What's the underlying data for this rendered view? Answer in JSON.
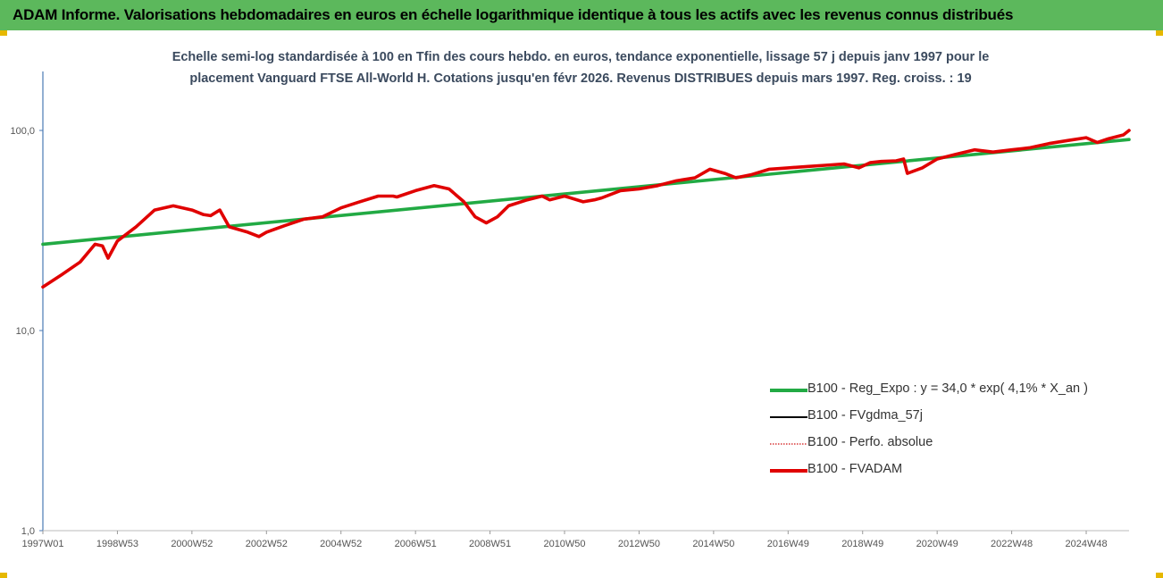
{
  "header": {
    "title": "ADAM Informe. Valorisations hebdomadaires en euros en échelle logarithmique identique à tous les actifs avec les revenus connus distribués"
  },
  "chart_data": {
    "type": "line",
    "subtitle_line1": "Echelle semi-log standardisée à 100 en Tfin des cours hebdo. en euros, tendance exponentielle, lissage 57 j depuis janv 1997 pour le",
    "subtitle_line2": "placement Vanguard FTSE All-World H. Cotations jusqu'en févr 2026. Revenus DISTRIBUES depuis mars 1997. Reg. croiss. : 19",
    "y_scale": "log",
    "ylim": [
      1,
      100
    ],
    "y_ticks": [
      "100,0",
      "10,0",
      "1,0"
    ],
    "x_range": [
      1997.0,
      2026.15
    ],
    "x_ticks": [
      "1997W01",
      "1998W53",
      "2000W52",
      "2002W52",
      "2004W52",
      "2006W51",
      "2008W51",
      "2010W50",
      "2012W50",
      "2014W50",
      "2016W49",
      "2018W49",
      "2020W49",
      "2022W48",
      "2024W48"
    ],
    "legend_position": "bottom-right",
    "series": [
      {
        "name": "B100 - Reg_Expo : y = 34,0 * exp( 4,1% *  X_an )",
        "color": "#22aa44",
        "style": "solid-thick",
        "x": [
          1997.0,
          2026.15
        ],
        "y": [
          27,
          90
        ]
      },
      {
        "name": "B100 - FVgdma_57j",
        "color": "#000000",
        "style": "solid",
        "x": [
          1997.0,
          1997.5,
          1998.0,
          1998.4,
          1998.6,
          1998.75,
          1999.0,
          1999.5,
          2000.0,
          2000.5,
          2001.0,
          2001.3,
          2001.5,
          2001.75,
          2002.0,
          2002.5,
          2002.8,
          2003.0,
          2003.5,
          2004.0,
          2004.5,
          2005.0,
          2005.5,
          2006.0,
          2006.4,
          2006.5,
          2007.0,
          2007.5,
          2007.9,
          2008.3,
          2008.6,
          2008.9,
          2009.2,
          2009.5,
          2010.0,
          2010.4,
          2010.6,
          2011.0,
          2011.5,
          2011.8,
          2012.0,
          2012.5,
          2013.0,
          2013.5,
          2014.0,
          2014.5,
          2014.9,
          2015.3,
          2015.6,
          2016.0,
          2016.5,
          2017.0,
          2017.5,
          2018.0,
          2018.5,
          2018.9,
          2019.2,
          2019.5,
          2019.9,
          2020.1,
          2020.2,
          2020.6,
          2021.0,
          2021.5,
          2022.0,
          2022.5,
          2023.0,
          2023.5,
          2024.0,
          2024.5,
          2025.0,
          2025.3,
          2025.6,
          2026.0,
          2026.15
        ],
        "y": [
          16.5,
          19,
          22,
          27,
          26.5,
          23,
          28,
          33,
          40,
          42,
          40,
          38,
          37.5,
          40,
          33,
          31,
          29.5,
          31,
          33.5,
          36,
          37,
          41,
          44,
          47,
          47,
          46.5,
          50,
          53,
          51,
          44,
          37,
          34.5,
          37,
          42,
          45,
          47,
          45,
          47,
          44,
          45,
          46,
          50,
          51,
          53,
          56,
          58,
          64,
          61,
          58,
          60,
          64,
          65,
          66,
          67,
          68,
          65,
          69,
          70,
          70.5,
          72,
          61,
          65,
          72,
          76,
          80,
          78,
          80,
          82,
          86,
          89,
          92,
          87,
          91,
          95,
          100
        ]
      },
      {
        "name": "B100 - Perfo. absolue",
        "color": "#d01010",
        "style": "dotted",
        "x": [
          1997.0,
          1997.5,
          1998.0,
          1998.4,
          1998.6,
          1998.75,
          1999.0,
          1999.5,
          2000.0,
          2000.5,
          2001.0,
          2001.3,
          2001.5,
          2001.75,
          2002.0,
          2002.5,
          2002.8,
          2003.0,
          2003.5,
          2004.0,
          2004.5,
          2005.0,
          2005.5,
          2006.0,
          2006.4,
          2006.5,
          2007.0,
          2007.5,
          2007.9,
          2008.3,
          2008.6,
          2008.9,
          2009.2,
          2009.5,
          2010.0,
          2010.4,
          2010.6,
          2011.0,
          2011.5,
          2011.8,
          2012.0,
          2012.5,
          2013.0,
          2013.5,
          2014.0,
          2014.5,
          2014.9,
          2015.3,
          2015.6,
          2016.0,
          2016.5,
          2017.0,
          2017.5,
          2018.0,
          2018.5,
          2018.9,
          2019.2,
          2019.5,
          2019.9,
          2020.1,
          2020.2,
          2020.6,
          2021.0,
          2021.5,
          2022.0,
          2022.5,
          2023.0,
          2023.5,
          2024.0,
          2024.5,
          2025.0,
          2025.3,
          2025.6,
          2026.0,
          2026.15
        ],
        "y": [
          16.5,
          19,
          22,
          27,
          26.5,
          23,
          28,
          33,
          40,
          42,
          40,
          38,
          37.5,
          40,
          33,
          31,
          29.5,
          31,
          33.5,
          36,
          37,
          41,
          44,
          47,
          47,
          46.5,
          50,
          53,
          51,
          44,
          37,
          34.5,
          37,
          42,
          45,
          47,
          45,
          47,
          44,
          45,
          46,
          50,
          51,
          53,
          56,
          58,
          64,
          61,
          58,
          60,
          64,
          65,
          66,
          67,
          68,
          65,
          69,
          70,
          70.5,
          72,
          61,
          65,
          72,
          76,
          80,
          78,
          80,
          82,
          86,
          89,
          92,
          87,
          91,
          95,
          100
        ]
      },
      {
        "name": "B100 - FVADAM",
        "color": "#e00000",
        "style": "solid-thick",
        "x": [
          1997.0,
          1997.5,
          1998.0,
          1998.4,
          1998.6,
          1998.75,
          1999.0,
          1999.5,
          2000.0,
          2000.5,
          2001.0,
          2001.3,
          2001.5,
          2001.75,
          2002.0,
          2002.5,
          2002.8,
          2003.0,
          2003.5,
          2004.0,
          2004.5,
          2005.0,
          2005.5,
          2006.0,
          2006.4,
          2006.5,
          2007.0,
          2007.5,
          2007.9,
          2008.3,
          2008.6,
          2008.9,
          2009.2,
          2009.5,
          2010.0,
          2010.4,
          2010.6,
          2011.0,
          2011.5,
          2011.8,
          2012.0,
          2012.5,
          2013.0,
          2013.5,
          2014.0,
          2014.5,
          2014.9,
          2015.3,
          2015.6,
          2016.0,
          2016.5,
          2017.0,
          2017.5,
          2018.0,
          2018.5,
          2018.9,
          2019.2,
          2019.5,
          2019.9,
          2020.1,
          2020.2,
          2020.6,
          2021.0,
          2021.5,
          2022.0,
          2022.5,
          2023.0,
          2023.5,
          2024.0,
          2024.5,
          2025.0,
          2025.3,
          2025.6,
          2026.0,
          2026.15
        ],
        "y": [
          16.5,
          19,
          22,
          27,
          26.5,
          23,
          28,
          33,
          40,
          42,
          40,
          38,
          37.5,
          40,
          33,
          31,
          29.5,
          31,
          33.5,
          36,
          37,
          41,
          44,
          47,
          47,
          46.5,
          50,
          53,
          51,
          44,
          37,
          34.5,
          37,
          42,
          45,
          47,
          45,
          47,
          44,
          45,
          46,
          50,
          51,
          53,
          56,
          58,
          64,
          61,
          58,
          60,
          64,
          65,
          66,
          67,
          68,
          65,
          69,
          70,
          70.5,
          72,
          61,
          65,
          72,
          76,
          80,
          78,
          80,
          82,
          86,
          89,
          92,
          87,
          91,
          95,
          100
        ]
      }
    ]
  }
}
